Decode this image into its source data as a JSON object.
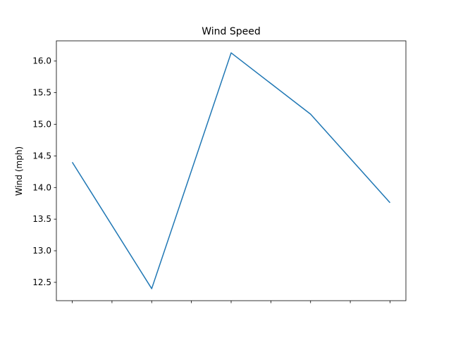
{
  "chart_data": {
    "type": "line",
    "title": "Wind Speed",
    "xlabel": "",
    "ylabel": "Wind (mph)",
    "x": [
      0,
      1,
      2,
      3,
      4
    ],
    "x_tick_labels": [
      "",
      "",
      "",
      "",
      "",
      "",
      "",
      "",
      ""
    ],
    "series": [
      {
        "values": [
          14.4,
          12.4,
          16.13,
          15.16,
          13.76
        ],
        "color": "#1f77b4"
      }
    ],
    "ylim": [
      12.21,
      16.32
    ],
    "xlim": [
      -0.2,
      4.2
    ],
    "y_ticks": [
      12.5,
      13.0,
      13.5,
      14.0,
      14.5,
      15.0,
      15.5,
      16.0
    ],
    "y_tick_labels": [
      "12.5",
      "13.0",
      "13.5",
      "14.0",
      "14.5",
      "15.0",
      "15.5",
      "16.0"
    ],
    "x_ticks": [
      0,
      0.5,
      1,
      1.5,
      2,
      2.5,
      3,
      3.5,
      4
    ],
    "grid": false,
    "legend": "none"
  }
}
